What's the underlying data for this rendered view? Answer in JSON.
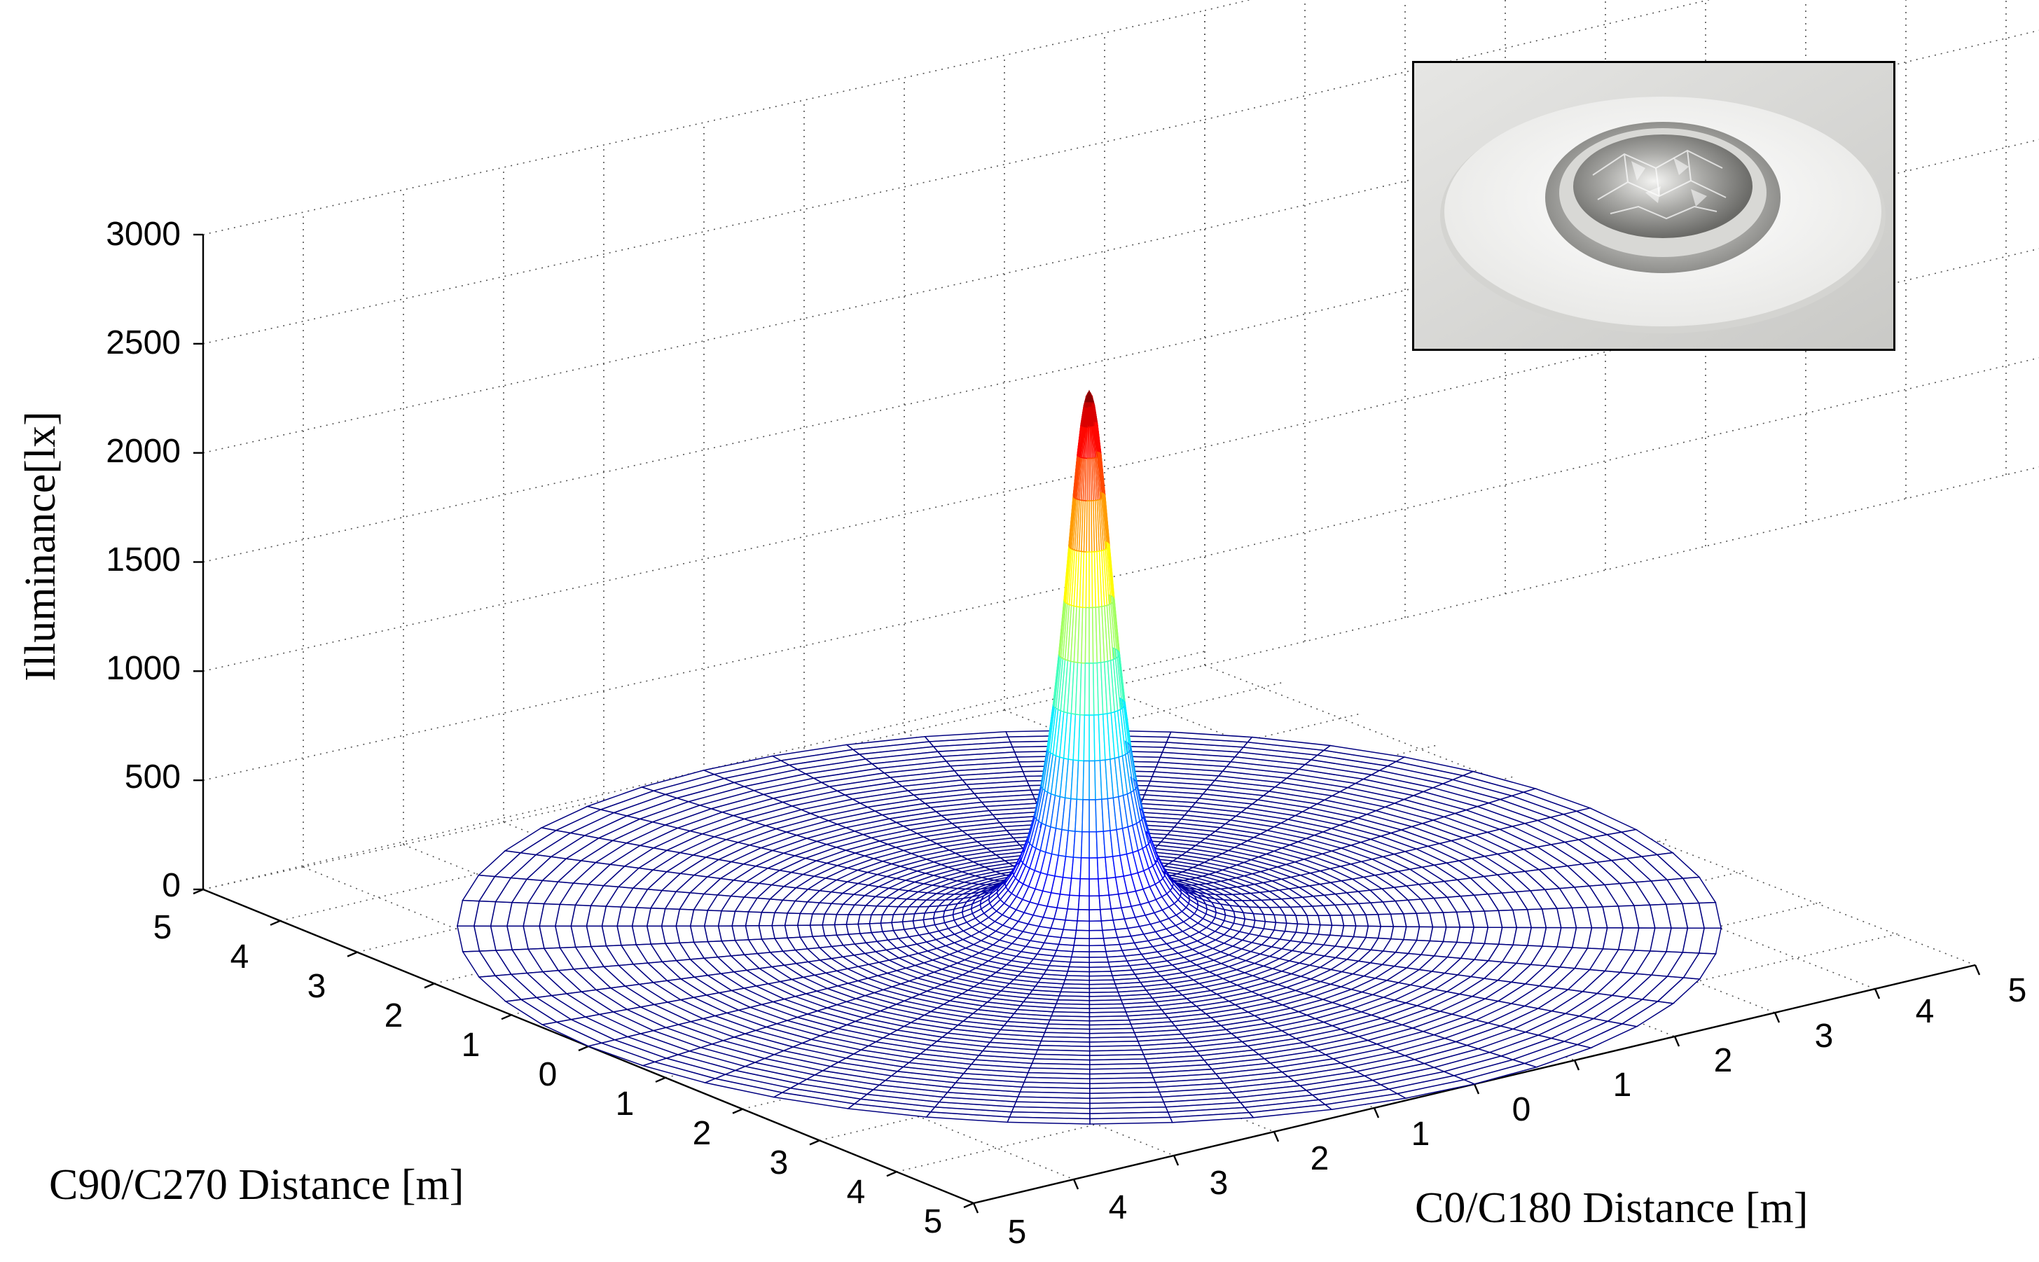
{
  "chart_data": {
    "type": "surface",
    "title": "",
    "zlabel": "Illuminance[lx]",
    "xlabel": "C0/C180 Distance [m]",
    "ylabel": "C90/C270 Distance [m]",
    "zlim": [
      0,
      3000
    ],
    "z_ticks": [
      "0",
      "500",
      "1000",
      "1500",
      "2000",
      "2500",
      "3000"
    ],
    "left_axis_ticks": [
      "5",
      "4",
      "3",
      "2",
      "1",
      "0",
      "1",
      "2",
      "3",
      "4",
      "5"
    ],
    "right_axis_ticks": [
      "5",
      "4",
      "3",
      "2",
      "1",
      "0",
      "1",
      "2",
      "3",
      "4",
      "5"
    ],
    "grid": true,
    "colormap": "jet",
    "surface": {
      "shape": "radially symmetric peak",
      "peak_value": 2450,
      "disc_radius_m": 5,
      "peak_center": [
        0,
        0
      ]
    },
    "inset_image": "recessed-downlight-photo"
  }
}
